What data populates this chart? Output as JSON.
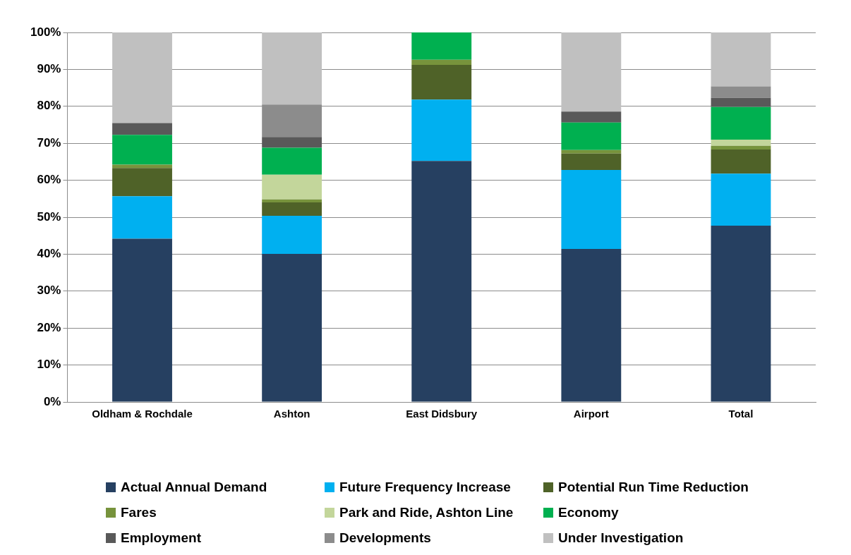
{
  "chart_data": {
    "type": "bar",
    "stacked": true,
    "categories": [
      "Oldham & Rochdale",
      "Ashton",
      "East Didsbury",
      "Airport",
      "Total"
    ],
    "series": [
      {
        "name": "Actual Annual Demand",
        "color": "#264061",
        "values": [
          44.2,
          40.1,
          65.2,
          41.4,
          47.7
        ]
      },
      {
        "name": "Future Frequency Increase",
        "color": "#00b0f0",
        "values": [
          11.5,
          10.3,
          16.6,
          21.4,
          14.1
        ]
      },
      {
        "name": "Potential Run Time Reduction",
        "color": "#4f6228",
        "values": [
          7.6,
          3.6,
          9.4,
          4.4,
          6.5
        ]
      },
      {
        "name": "Fares",
        "color": "#77933c",
        "values": [
          0.9,
          0.8,
          1.4,
          1.0,
          1.0
        ]
      },
      {
        "name": "Park and Ride, Ashton Line",
        "color": "#c3d69b",
        "values": [
          0,
          6.7,
          0,
          0,
          1.7
        ]
      },
      {
        "name": "Economy",
        "color": "#00b050",
        "values": [
          8.1,
          7.3,
          7.4,
          7.4,
          8.8
        ]
      },
      {
        "name": "Employment",
        "color": "#595959",
        "values": [
          3.2,
          2.9,
          0,
          3.0,
          2.5
        ]
      },
      {
        "name": "Developments",
        "color": "#8c8c8c",
        "values": [
          0,
          8.8,
          0,
          0,
          3.1
        ]
      },
      {
        "name": "Under Investigation",
        "color": "#c0c0c0",
        "values": [
          24.5,
          19.5,
          0,
          21.4,
          14.6
        ]
      }
    ],
    "ylim": [
      0,
      100
    ],
    "yticks": [
      {
        "value": 0,
        "label": "0%"
      },
      {
        "value": 10,
        "label": "10%"
      },
      {
        "value": 20,
        "label": "20%"
      },
      {
        "value": 30,
        "label": "30%"
      },
      {
        "value": 40,
        "label": "40%"
      },
      {
        "value": 50,
        "label": "50%"
      },
      {
        "value": 60,
        "label": "60%"
      },
      {
        "value": 70,
        "label": "70%"
      },
      {
        "value": 80,
        "label": "80%"
      },
      {
        "value": 90,
        "label": "90%"
      },
      {
        "value": 100,
        "label": "100%"
      }
    ],
    "grid": "y",
    "legend": "bottom"
  }
}
